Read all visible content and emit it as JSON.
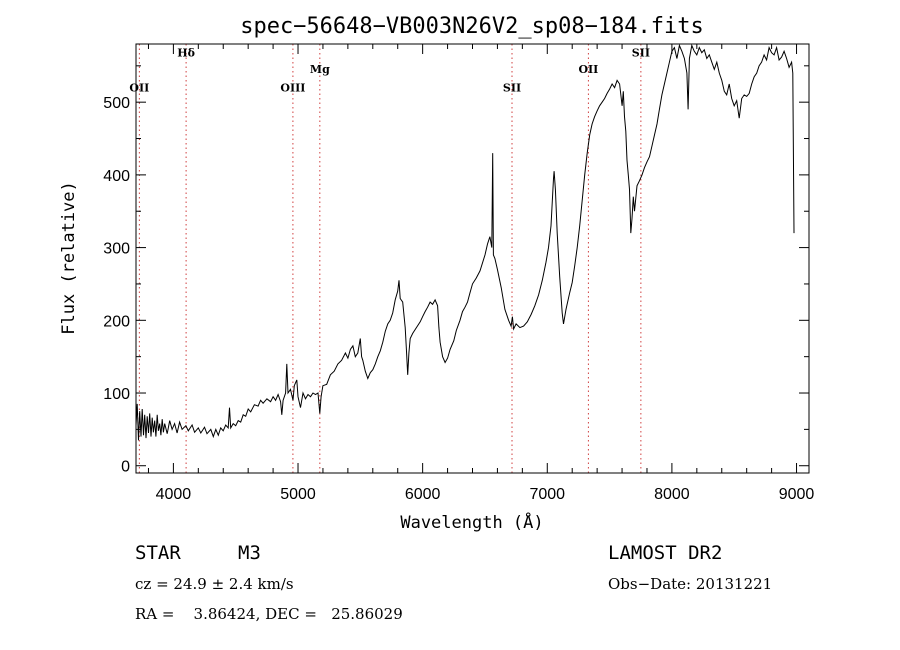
{
  "chart_data": {
    "type": "line",
    "title": "spec−56648−VB003N26V2_sp08−184.fits",
    "xlabel": "Wavelength (Å)",
    "ylabel": "Flux (relative)",
    "xlim": [
      3700,
      9100
    ],
    "ylim": [
      -10,
      580
    ],
    "xticks": [
      4000,
      5000,
      6000,
      7000,
      8000,
      9000
    ],
    "yticks": [
      0,
      100,
      200,
      300,
      400,
      500
    ],
    "xtick_labels": [
      "4000",
      "5000",
      "6000",
      "7000",
      "8000",
      "9000"
    ],
    "ytick_labels": [
      "0",
      "100",
      "200",
      "300",
      "400",
      "500"
    ],
    "grid": false,
    "line_color": "#000000",
    "marker_color": "#d04040",
    "line_markers": [
      {
        "label": "OII",
        "x": 3727,
        "label_y": 515
      },
      {
        "label": "Hδ",
        "x": 4102,
        "label_y": 563
      },
      {
        "label": "OIII",
        "x": 4959,
        "label_y": 515
      },
      {
        "label": "Mg",
        "x": 5175,
        "label_y": 540
      },
      {
        "label": "SII",
        "x": 6717,
        "label_y": 515
      },
      {
        "label": "OII",
        "x": 7330,
        "label_y": 540
      },
      {
        "label": "SII",
        "x": 7751,
        "label_y": 563
      }
    ],
    "series": [
      {
        "values": [
          [
            3700,
            55
          ],
          [
            3710,
            85
          ],
          [
            3720,
            35
          ],
          [
            3730,
            75
          ],
          [
            3740,
            40
          ],
          [
            3750,
            78
          ],
          [
            3760,
            42
          ],
          [
            3770,
            70
          ],
          [
            3780,
            38
          ],
          [
            3790,
            68
          ],
          [
            3800,
            45
          ],
          [
            3810,
            72
          ],
          [
            3820,
            40
          ],
          [
            3830,
            66
          ],
          [
            3840,
            46
          ],
          [
            3850,
            62
          ],
          [
            3860,
            40
          ],
          [
            3870,
            70
          ],
          [
            3880,
            48
          ],
          [
            3890,
            58
          ],
          [
            3900,
            42
          ],
          [
            3910,
            64
          ],
          [
            3920,
            46
          ],
          [
            3930,
            58
          ],
          [
            3950,
            44
          ],
          [
            3970,
            62
          ],
          [
            3990,
            50
          ],
          [
            4010,
            58
          ],
          [
            4030,
            45
          ],
          [
            4050,
            60
          ],
          [
            4070,
            50
          ],
          [
            4100,
            55
          ],
          [
            4120,
            48
          ],
          [
            4150,
            56
          ],
          [
            4170,
            46
          ],
          [
            4200,
            52
          ],
          [
            4220,
            45
          ],
          [
            4250,
            53
          ],
          [
            4270,
            44
          ],
          [
            4300,
            50
          ],
          [
            4320,
            40
          ],
          [
            4340,
            50
          ],
          [
            4360,
            42
          ],
          [
            4380,
            52
          ],
          [
            4400,
            48
          ],
          [
            4420,
            56
          ],
          [
            4440,
            52
          ],
          [
            4450,
            80
          ],
          [
            4460,
            52
          ],
          [
            4480,
            58
          ],
          [
            4500,
            55
          ],
          [
            4520,
            62
          ],
          [
            4540,
            60
          ],
          [
            4560,
            70
          ],
          [
            4580,
            68
          ],
          [
            4600,
            78
          ],
          [
            4620,
            74
          ],
          [
            4650,
            84
          ],
          [
            4680,
            82
          ],
          [
            4700,
            90
          ],
          [
            4720,
            86
          ],
          [
            4750,
            92
          ],
          [
            4780,
            88
          ],
          [
            4800,
            95
          ],
          [
            4820,
            90
          ],
          [
            4840,
            98
          ],
          [
            4860,
            88
          ],
          [
            4870,
            70
          ],
          [
            4880,
            90
          ],
          [
            4900,
            100
          ],
          [
            4910,
            140
          ],
          [
            4920,
            100
          ],
          [
            4940,
            105
          ],
          [
            4960,
            90
          ],
          [
            4970,
            110
          ],
          [
            4990,
            118
          ],
          [
            5000,
            95
          ],
          [
            5020,
            80
          ],
          [
            5040,
            100
          ],
          [
            5060,
            92
          ],
          [
            5080,
            98
          ],
          [
            5100,
            95
          ],
          [
            5120,
            100
          ],
          [
            5140,
            98
          ],
          [
            5160,
            100
          ],
          [
            5175,
            72
          ],
          [
            5185,
            95
          ],
          [
            5200,
            110
          ],
          [
            5230,
            112
          ],
          [
            5260,
            125
          ],
          [
            5290,
            130
          ],
          [
            5320,
            140
          ],
          [
            5350,
            145
          ],
          [
            5380,
            155
          ],
          [
            5400,
            148
          ],
          [
            5420,
            160
          ],
          [
            5440,
            165
          ],
          [
            5460,
            150
          ],
          [
            5480,
            155
          ],
          [
            5500,
            175
          ],
          [
            5510,
            150
          ],
          [
            5520,
            145
          ],
          [
            5540,
            130
          ],
          [
            5560,
            120
          ],
          [
            5580,
            128
          ],
          [
            5600,
            132
          ],
          [
            5620,
            140
          ],
          [
            5640,
            150
          ],
          [
            5660,
            158
          ],
          [
            5680,
            170
          ],
          [
            5700,
            185
          ],
          [
            5720,
            195
          ],
          [
            5740,
            200
          ],
          [
            5760,
            210
          ],
          [
            5780,
            228
          ],
          [
            5800,
            240
          ],
          [
            5810,
            255
          ],
          [
            5820,
            230
          ],
          [
            5840,
            225
          ],
          [
            5860,
            190
          ],
          [
            5870,
            160
          ],
          [
            5880,
            125
          ],
          [
            5890,
            155
          ],
          [
            5900,
            175
          ],
          [
            5920,
            182
          ],
          [
            5950,
            190
          ],
          [
            5980,
            198
          ],
          [
            6000,
            205
          ],
          [
            6020,
            212
          ],
          [
            6040,
            218
          ],
          [
            6060,
            225
          ],
          [
            6080,
            222
          ],
          [
            6100,
            228
          ],
          [
            6120,
            220
          ],
          [
            6130,
            190
          ],
          [
            6140,
            170
          ],
          [
            6160,
            150
          ],
          [
            6180,
            142
          ],
          [
            6200,
            148
          ],
          [
            6220,
            160
          ],
          [
            6250,
            172
          ],
          [
            6270,
            186
          ],
          [
            6300,
            200
          ],
          [
            6320,
            212
          ],
          [
            6340,
            218
          ],
          [
            6360,
            225
          ],
          [
            6380,
            238
          ],
          [
            6400,
            250
          ],
          [
            6430,
            258
          ],
          [
            6460,
            268
          ],
          [
            6500,
            290
          ],
          [
            6520,
            305
          ],
          [
            6540,
            315
          ],
          [
            6555,
            300
          ],
          [
            6562,
            430
          ],
          [
            6568,
            290
          ],
          [
            6580,
            285
          ],
          [
            6600,
            270
          ],
          [
            6630,
            245
          ],
          [
            6660,
            215
          ],
          [
            6690,
            200
          ],
          [
            6710,
            192
          ],
          [
            6720,
            205
          ],
          [
            6730,
            188
          ],
          [
            6750,
            195
          ],
          [
            6780,
            190
          ],
          [
            6810,
            192
          ],
          [
            6840,
            198
          ],
          [
            6870,
            208
          ],
          [
            6900,
            220
          ],
          [
            6930,
            235
          ],
          [
            6960,
            255
          ],
          [
            6990,
            280
          ],
          [
            7010,
            300
          ],
          [
            7030,
            330
          ],
          [
            7050,
            395
          ],
          [
            7055,
            405
          ],
          [
            7065,
            380
          ],
          [
            7080,
            320
          ],
          [
            7100,
            260
          ],
          [
            7120,
            210
          ],
          [
            7130,
            195
          ],
          [
            7150,
            215
          ],
          [
            7180,
            238
          ],
          [
            7200,
            252
          ],
          [
            7220,
            275
          ],
          [
            7240,
            300
          ],
          [
            7260,
            330
          ],
          [
            7280,
            365
          ],
          [
            7300,
            400
          ],
          [
            7320,
            430
          ],
          [
            7340,
            455
          ],
          [
            7360,
            470
          ],
          [
            7380,
            480
          ],
          [
            7400,
            488
          ],
          [
            7420,
            495
          ],
          [
            7440,
            500
          ],
          [
            7460,
            505
          ],
          [
            7480,
            512
          ],
          [
            7500,
            518
          ],
          [
            7520,
            525
          ],
          [
            7540,
            520
          ],
          [
            7560,
            530
          ],
          [
            7580,
            525
          ],
          [
            7600,
            495
          ],
          [
            7610,
            515
          ],
          [
            7620,
            480
          ],
          [
            7630,
            460
          ],
          [
            7640,
            420
          ],
          [
            7650,
            400
          ],
          [
            7660,
            380
          ],
          [
            7670,
            320
          ],
          [
            7680,
            340
          ],
          [
            7690,
            370
          ],
          [
            7700,
            350
          ],
          [
            7720,
            385
          ],
          [
            7740,
            392
          ],
          [
            7760,
            400
          ],
          [
            7780,
            410
          ],
          [
            7800,
            418
          ],
          [
            7820,
            425
          ],
          [
            7840,
            440
          ],
          [
            7860,
            455
          ],
          [
            7880,
            470
          ],
          [
            7900,
            490
          ],
          [
            7920,
            510
          ],
          [
            7940,
            525
          ],
          [
            7960,
            540
          ],
          [
            7980,
            555
          ],
          [
            8000,
            570
          ],
          [
            8020,
            575
          ],
          [
            8040,
            560
          ],
          [
            8060,
            578
          ],
          [
            8080,
            570
          ],
          [
            8100,
            560
          ],
          [
            8120,
            540
          ],
          [
            8130,
            490
          ],
          [
            8140,
            560
          ],
          [
            8160,
            578
          ],
          [
            8180,
            570
          ],
          [
            8200,
            565
          ],
          [
            8220,
            575
          ],
          [
            8240,
            568
          ],
          [
            8260,
            572
          ],
          [
            8280,
            560
          ],
          [
            8300,
            565
          ],
          [
            8320,
            555
          ],
          [
            8340,
            545
          ],
          [
            8360,
            555
          ],
          [
            8380,
            540
          ],
          [
            8400,
            530
          ],
          [
            8420,
            515
          ],
          [
            8440,
            510
          ],
          [
            8460,
            525
          ],
          [
            8480,
            505
          ],
          [
            8500,
            495
          ],
          [
            8520,
            502
          ],
          [
            8540,
            478
          ],
          [
            8560,
            505
          ],
          [
            8580,
            510
          ],
          [
            8600,
            508
          ],
          [
            8620,
            512
          ],
          [
            8640,
            525
          ],
          [
            8660,
            535
          ],
          [
            8680,
            540
          ],
          [
            8700,
            550
          ],
          [
            8720,
            555
          ],
          [
            8740,
            565
          ],
          [
            8760,
            558
          ],
          [
            8780,
            575
          ],
          [
            8800,
            568
          ],
          [
            8820,
            565
          ],
          [
            8840,
            575
          ],
          [
            8860,
            558
          ],
          [
            8880,
            562
          ],
          [
            8900,
            570
          ],
          [
            8920,
            560
          ],
          [
            8940,
            548
          ],
          [
            8960,
            555
          ],
          [
            8970,
            540
          ],
          [
            8980,
            320
          ]
        ]
      }
    ]
  },
  "info": {
    "object_class": "STAR",
    "subclass": "M3",
    "survey": "LAMOST DR2",
    "cz": "cz = 24.9 ± 2.4 km/s",
    "obs_date": "Obs−Date: 20131221",
    "coords": "RA =    3.86424, DEC =   25.86029"
  }
}
